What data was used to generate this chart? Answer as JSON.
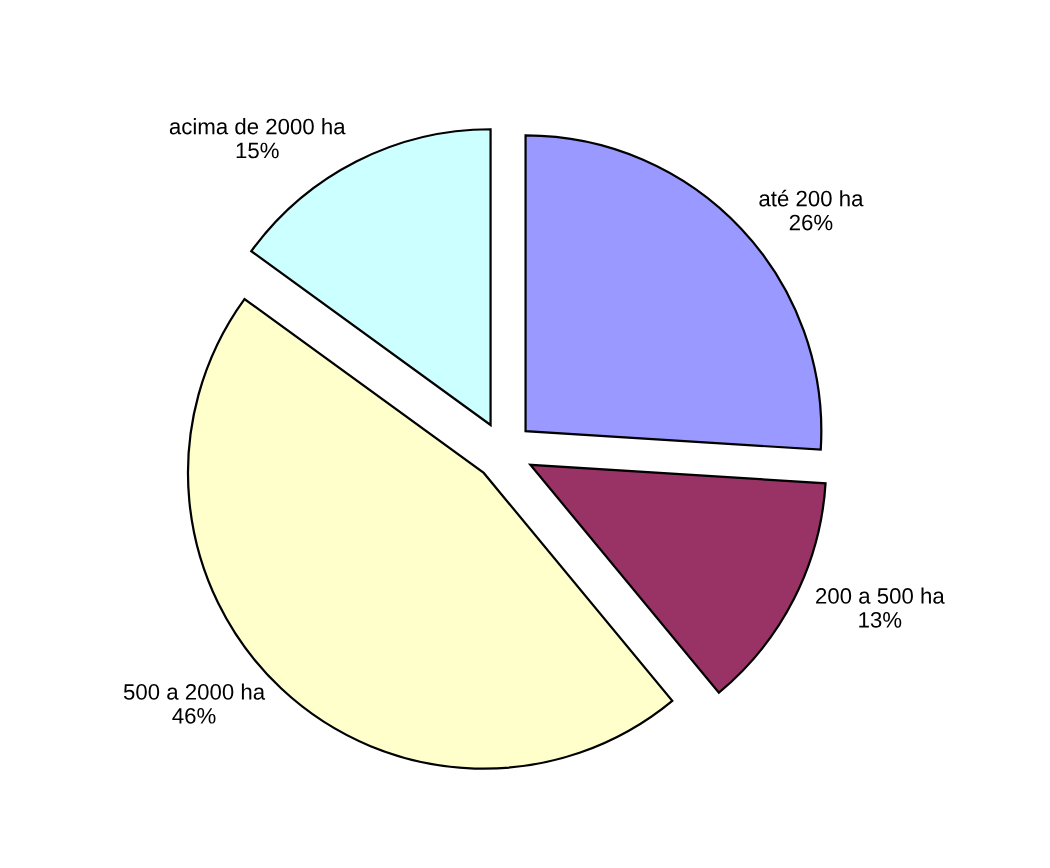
{
  "chart_data": {
    "type": "pie",
    "categories": [
      "até 200 ha",
      "200 a 500 ha",
      "500 a 2000 ha",
      "acima de 2000 ha"
    ],
    "values": [
      26,
      13,
      46,
      15
    ],
    "value_labels": [
      "26%",
      "13%",
      "46%",
      "15%"
    ],
    "colors": [
      "#9999ff",
      "#993366",
      "#ffffcc",
      "#ccffff"
    ]
  }
}
